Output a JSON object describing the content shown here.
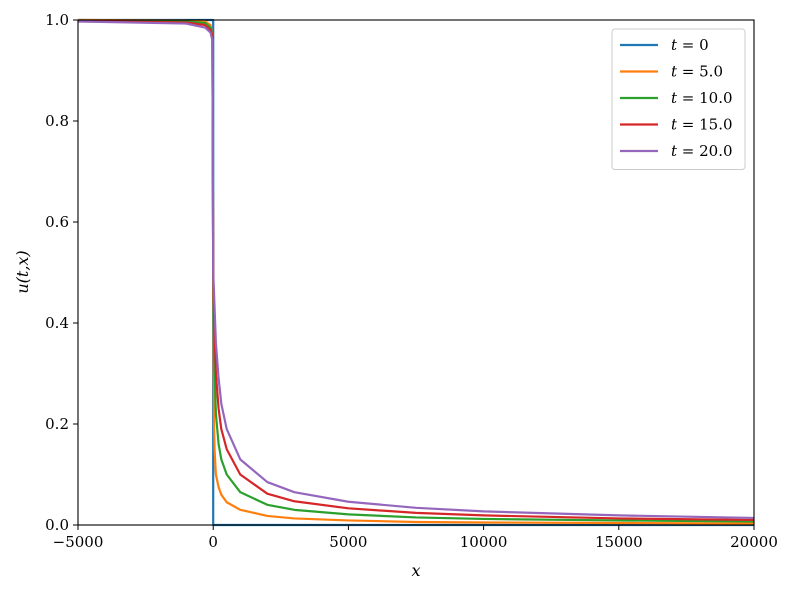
{
  "chart_data": {
    "type": "line",
    "title": "",
    "xlabel": "x",
    "ylabel": "u(t,x)",
    "xlim": [
      -5000,
      20000
    ],
    "ylim": [
      0,
      1.0
    ],
    "xticks": [
      -5000,
      0,
      5000,
      10000,
      15000,
      20000
    ],
    "xtick_labels": [
      "−5000",
      "0",
      "5000",
      "10000",
      "15000",
      "20000"
    ],
    "yticks": [
      0,
      0.2,
      0.4,
      0.6,
      0.8,
      1.0
    ],
    "ytick_labels": [
      "0.0",
      "0.2",
      "0.4",
      "0.6",
      "0.8",
      "1.0"
    ],
    "grid": false,
    "legend_position": "top-right",
    "series": [
      {
        "name": "t = 0",
        "legend_var": "t",
        "legend_value": "0",
        "color": "#1f77b4",
        "points": [
          [
            -5000,
            1.0
          ],
          [
            0,
            1.0
          ],
          [
            0,
            0.0
          ],
          [
            20000,
            0.0
          ]
        ]
      },
      {
        "name": "t = 5.0",
        "legend_var": "t",
        "legend_value": "5.0",
        "color": "#ff7f0e",
        "points": [
          [
            -5000,
            1.0
          ],
          [
            -1000,
            0.999
          ],
          [
            -300,
            0.997
          ],
          [
            -100,
            0.99
          ],
          [
            -30,
            0.97
          ],
          [
            0,
            0.5
          ],
          [
            30,
            0.2
          ],
          [
            50,
            0.15
          ],
          [
            100,
            0.1
          ],
          [
            200,
            0.075
          ],
          [
            300,
            0.06
          ],
          [
            500,
            0.045
          ],
          [
            1000,
            0.03
          ],
          [
            2000,
            0.018
          ],
          [
            3000,
            0.013
          ],
          [
            5000,
            0.009
          ],
          [
            7500,
            0.006
          ],
          [
            10000,
            0.005
          ],
          [
            15000,
            0.004
          ],
          [
            20000,
            0.003
          ]
        ]
      },
      {
        "name": "t = 10.0",
        "legend_var": "t",
        "legend_value": "10.0",
        "color": "#2ca02c",
        "points": [
          [
            -5000,
            0.999
          ],
          [
            -1000,
            0.997
          ],
          [
            -300,
            0.994
          ],
          [
            -100,
            0.985
          ],
          [
            -30,
            0.97
          ],
          [
            0,
            0.5
          ],
          [
            30,
            0.34
          ],
          [
            100,
            0.22
          ],
          [
            200,
            0.16
          ],
          [
            300,
            0.13
          ],
          [
            500,
            0.1
          ],
          [
            1000,
            0.065
          ],
          [
            2000,
            0.04
          ],
          [
            3000,
            0.03
          ],
          [
            5000,
            0.021
          ],
          [
            7500,
            0.015
          ],
          [
            10000,
            0.012
          ],
          [
            15000,
            0.009
          ],
          [
            20000,
            0.007
          ]
        ]
      },
      {
        "name": "t = 15.0",
        "legend_var": "t",
        "legend_value": "15.0",
        "color": "#d62728",
        "points": [
          [
            -5000,
            0.998
          ],
          [
            -1000,
            0.995
          ],
          [
            -300,
            0.99
          ],
          [
            -100,
            0.98
          ],
          [
            -30,
            0.97
          ],
          [
            0,
            0.5
          ],
          [
            30,
            0.42
          ],
          [
            100,
            0.3
          ],
          [
            200,
            0.23
          ],
          [
            300,
            0.19
          ],
          [
            500,
            0.15
          ],
          [
            1000,
            0.1
          ],
          [
            2000,
            0.062
          ],
          [
            3000,
            0.047
          ],
          [
            5000,
            0.033
          ],
          [
            7500,
            0.024
          ],
          [
            10000,
            0.019
          ],
          [
            15000,
            0.013
          ],
          [
            20000,
            0.01
          ]
        ]
      },
      {
        "name": "t = 20.0",
        "legend_var": "t",
        "legend_value": "20.0",
        "color": "#9467bd",
        "points": [
          [
            -5000,
            0.997
          ],
          [
            -1000,
            0.993
          ],
          [
            -300,
            0.985
          ],
          [
            -100,
            0.975
          ],
          [
            -30,
            0.96
          ],
          [
            0,
            0.5
          ],
          [
            30,
            0.46
          ],
          [
            100,
            0.36
          ],
          [
            200,
            0.29
          ],
          [
            300,
            0.24
          ],
          [
            500,
            0.19
          ],
          [
            1000,
            0.13
          ],
          [
            2000,
            0.085
          ],
          [
            3000,
            0.065
          ],
          [
            5000,
            0.046
          ],
          [
            7500,
            0.034
          ],
          [
            10000,
            0.027
          ],
          [
            15000,
            0.019
          ],
          [
            20000,
            0.014
          ]
        ]
      }
    ]
  }
}
